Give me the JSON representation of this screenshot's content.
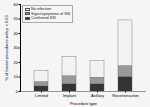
{
  "chart_data": {
    "type": "bar",
    "stacked": true,
    "categories": [
      "Limited",
      "Implant",
      "Axillary",
      "Reconstruction"
    ],
    "series": [
      {
        "name": "Confirmed SSI",
        "color": "#333333",
        "values": [
          3.5,
          5.0,
          5.0,
          10.0
        ]
      },
      {
        "name": "Signs/symptoms of SSI",
        "color": "#999999",
        "values": [
          3.0,
          5.5,
          4.5,
          7.5
        ]
      },
      {
        "name": "No infection",
        "color": "#f2f2f2",
        "values": [
          7.5,
          13.5,
          11.5,
          31.5
        ]
      }
    ],
    "xlabel": "Procedure type",
    "ylabel": "% of breast procedures with p > 0.03",
    "ylim": [
      0,
      60
    ],
    "yticks": [
      0,
      10,
      20,
      30,
      40,
      50,
      60
    ],
    "grid": false,
    "legend": "upper left"
  }
}
